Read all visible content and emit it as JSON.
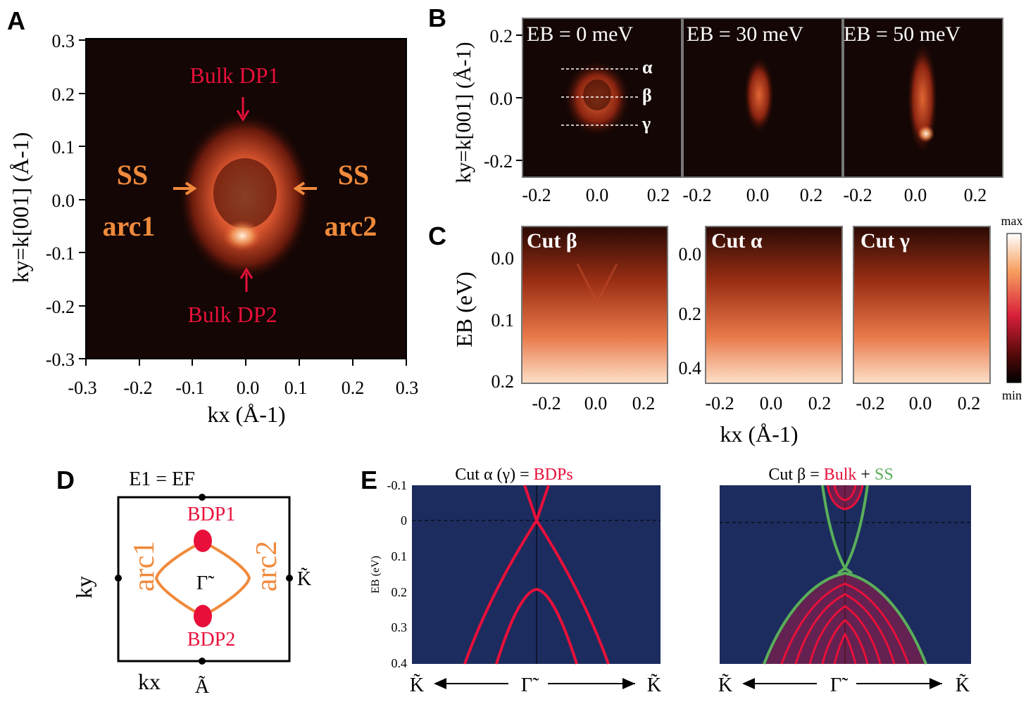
{
  "panels": {
    "A": {
      "letter": "A",
      "xlabel": "kx (Å-1)",
      "ylabel": "ky=k[001] (Å-1)",
      "ticks": [
        "-0.3",
        "-0.2",
        "-0.1",
        "0.0",
        "0.1",
        "0.2",
        "0.3"
      ],
      "yticks": [
        "0.3",
        "0.2",
        "0.1",
        "0.0",
        "-0.1",
        "-0.2",
        "-0.3"
      ],
      "labels": {
        "bulk1": "Bulk DP1",
        "bulk2": "Bulk DP2",
        "ss": "SS",
        "arc1": "arc1",
        "arc2": "arc2"
      }
    },
    "B": {
      "letter": "B",
      "ylabel": "ky=k[001] (Å-1)",
      "titles": [
        "EB = 0 meV",
        "EB = 30 meV",
        "EB = 50 meV"
      ],
      "cuts": [
        "α",
        "β",
        "γ"
      ],
      "yticks": [
        "0.2",
        "0.0",
        "-0.2"
      ],
      "xticks": [
        "-0.2",
        "0.0",
        "0.2"
      ]
    },
    "C": {
      "letter": "C",
      "ylabel": "EB (eV)",
      "xlabel": "kx (Å-1)",
      "titles": [
        "Cut β",
        "Cut α",
        "Cut γ"
      ],
      "yticks1": [
        "0.0",
        "0.1",
        "0.2"
      ],
      "yticks2": [
        "0.0",
        "0.2",
        "0.4"
      ],
      "xticks": [
        "-0.2",
        "0.0",
        "0.2"
      ],
      "colorbar": {
        "max": "max",
        "min": "min"
      }
    },
    "D": {
      "letter": "D",
      "title": "E1 = EF",
      "ky": "ky",
      "kx": "kx",
      "bdp1": "BDP1",
      "bdp2": "BDP2",
      "arc1": "arc1",
      "arc2": "arc2",
      "gamma": "Γ̃",
      "kpoint": "K̃",
      "apoint": "Ã"
    },
    "E": {
      "letter": "E",
      "title1": {
        "pre": "Cut α (γ) = ",
        "red": "BDPs"
      },
      "title2": {
        "pre": "Cut β = ",
        "red": "Bulk",
        "plus": " + ",
        "green": "SS"
      },
      "ylabel": "EB (eV)",
      "yticks": [
        "-0.1",
        "0",
        "0.1",
        "0.2",
        "0.3",
        "0.4"
      ],
      "k": "K̃",
      "g": "Γ̃"
    }
  },
  "colors": {
    "bg": "#0e0402",
    "red": "#e8103a",
    "orange": "#f08a3c",
    "navy": "#1c2c5e",
    "green": "#5aae5a"
  }
}
